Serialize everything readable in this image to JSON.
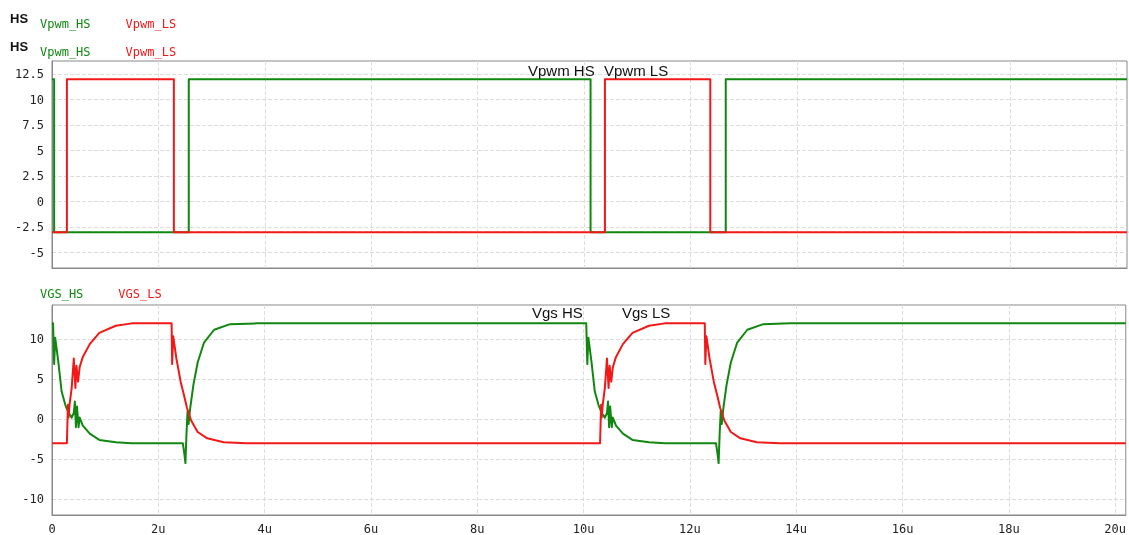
{
  "chart_data": [
    {
      "type": "line",
      "legend": "top left",
      "grid": true,
      "tick_labels": "y",
      "marker": "none",
      "line_style": "solid",
      "annotations": [
        "HS",
        "HS",
        "Vpwm HS",
        "Vpwm LS"
      ],
      "xlim": [
        0,
        20.2
      ],
      "xticks": [
        0,
        2,
        4,
        6,
        8,
        10,
        12,
        14,
        16,
        18,
        20
      ],
      "ylim": [
        -6.5,
        13.8
      ],
      "yticks": [
        -5,
        -2.5,
        0,
        2.5,
        5,
        7.5,
        10,
        12.5
      ],
      "series": [
        {
          "name": "Vpwm_HS",
          "color": "#108810",
          "x": [
            0,
            0.04,
            0.04,
            2.57,
            2.57,
            10.12,
            10.12,
            12.66,
            12.66,
            20.2
          ],
          "values": [
            12,
            12,
            -3,
            -3,
            12,
            12,
            -3,
            -3,
            12,
            12
          ]
        },
        {
          "name": "Vpwm_LS",
          "color": "#f21818",
          "x": [
            0,
            0.28,
            0.28,
            2.29,
            2.29,
            10.39,
            10.39,
            12.37,
            12.37,
            20.2
          ],
          "values": [
            -3,
            -3,
            12,
            12,
            -3,
            -3,
            12,
            12,
            -3,
            -3
          ]
        }
      ]
    },
    {
      "type": "line",
      "legend": "top left",
      "grid": true,
      "marker": "none",
      "line_style": "solid",
      "annotations": [
        "Vgs HS",
        "Vgs LS"
      ],
      "xlim": [
        0,
        20.2
      ],
      "xticks": [
        0,
        {
          "value": 2,
          "label": "2u"
        },
        {
          "value": 4,
          "label": "4u"
        },
        {
          "value": 6,
          "label": "6u"
        },
        {
          "value": 8,
          "label": "8u"
        },
        {
          "value": 10,
          "label": "10u"
        },
        {
          "value": 12,
          "label": "12u"
        },
        {
          "value": 14,
          "label": "14u"
        },
        {
          "value": 16,
          "label": "16u"
        },
        {
          "value": 18,
          "label": "18u"
        },
        {
          "value": 20,
          "label": "20u"
        }
      ],
      "ylim": [
        -12,
        14.3
      ],
      "yticks": [
        -10,
        -5,
        0,
        5,
        10
      ],
      "series": [
        {
          "name": "VGS_HS",
          "color": "#108810",
          "x": [
            0,
            0.02,
            0.04,
            0.06,
            0.12,
            0.18,
            0.25,
            0.31,
            0.37,
            0.41,
            0.43,
            0.45,
            0.47,
            0.5,
            0.52,
            0.58,
            0.71,
            0.89,
            1.2,
            1.5,
            2.46,
            2.49,
            2.51,
            2.53,
            2.55,
            2.57,
            2.6,
            2.66,
            2.74,
            2.86,
            3.05,
            3.35,
            3.85,
            10.05,
            10.07,
            10.09,
            10.15,
            10.21,
            10.28,
            10.34,
            10.4,
            10.44,
            10.46,
            10.48,
            10.5,
            10.53,
            10.55,
            10.61,
            10.74,
            10.92,
            11.23,
            11.53,
            12.49,
            12.52,
            12.54,
            12.56,
            12.58,
            12.6,
            12.63,
            12.69,
            12.77,
            12.89,
            13.08,
            13.38,
            13.88,
            20.2
          ],
          "values": [
            12,
            12,
            6.9,
            10.2,
            7.1,
            3.5,
            1.8,
            0.8,
            0.2,
            0.8,
            2.2,
            -1.0,
            1.6,
            -1.0,
            0.2,
            -0.8,
            -1.8,
            -2.6,
            -2.9,
            -3,
            -3,
            -4.3,
            -5.5,
            -1.8,
            1.0,
            -0.6,
            1.4,
            4.3,
            7.1,
            9.6,
            11.2,
            11.9,
            12,
            12,
            6.9,
            10.2,
            7.1,
            3.5,
            1.8,
            0.8,
            0.2,
            0.8,
            2.2,
            -1.0,
            1.6,
            -1.0,
            0.2,
            -0.8,
            -1.8,
            -2.6,
            -2.9,
            -3,
            -3,
            -4.3,
            -5.5,
            -1.8,
            1.0,
            -0.6,
            1.4,
            4.3,
            7.1,
            9.6,
            11.2,
            11.9,
            12,
            12
          ]
        },
        {
          "name": "VGS_LS",
          "color": "#f21818",
          "x": [
            0,
            0.28,
            0.3,
            0.31,
            0.33,
            0.37,
            0.41,
            0.44,
            0.46,
            0.49,
            0.52,
            0.58,
            0.71,
            0.89,
            1.2,
            1.5,
            2.25,
            2.26,
            2.28,
            2.34,
            2.42,
            2.48,
            2.54,
            2.62,
            2.74,
            2.92,
            3.23,
            3.66,
            10.31,
            10.33,
            10.34,
            10.36,
            10.4,
            10.44,
            10.47,
            10.49,
            10.52,
            10.55,
            10.61,
            10.74,
            10.92,
            11.23,
            11.53,
            12.28,
            12.29,
            12.31,
            12.37,
            12.45,
            12.51,
            12.57,
            12.65,
            12.77,
            12.95,
            13.26,
            13.69,
            20.2
          ],
          "values": [
            -3,
            -3,
            1.8,
            0.2,
            1.8,
            3.9,
            7.6,
            3.9,
            6.7,
            4.7,
            6.5,
            7.8,
            9.4,
            10.8,
            11.7,
            12,
            12,
            6.9,
            10.4,
            7.6,
            4.7,
            3.1,
            1.4,
            -0.2,
            -1.6,
            -2.4,
            -2.9,
            -3,
            -3,
            1.8,
            0.2,
            1.8,
            3.9,
            7.6,
            3.9,
            6.7,
            4.7,
            6.5,
            7.8,
            9.4,
            10.8,
            11.7,
            12,
            12,
            6.9,
            10.4,
            7.6,
            4.7,
            3.1,
            1.4,
            -0.2,
            -1.6,
            -2.4,
            -2.9,
            -3,
            -3
          ]
        }
      ]
    }
  ]
}
